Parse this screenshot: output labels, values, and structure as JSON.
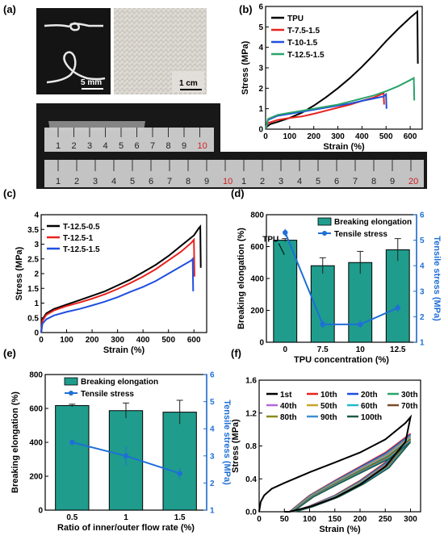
{
  "panel_labels": [
    "(a)",
    "(b)",
    "(c)",
    "(d)",
    "(e)",
    "(f)"
  ],
  "photo_a": {
    "scale_bar_1": "5 mm",
    "scale_bar_2": "1 cm",
    "ruler1_ticks": [
      "1",
      "2",
      "3",
      "4",
      "5",
      "6",
      "7",
      "8",
      "9",
      "10"
    ],
    "ruler2_ticks": [
      "1",
      "2",
      "3",
      "4",
      "5",
      "6",
      "7",
      "8",
      "9",
      "10",
      "1",
      "2",
      "3",
      "4",
      "5",
      "6",
      "7",
      "8",
      "9",
      "20"
    ],
    "colors": {
      "photo_bg": "#141414",
      "mesh": "#d8d6d2",
      "ruler": "#c9c9c9",
      "red_numeral": "#d21f1f"
    }
  },
  "chart_data": [
    {
      "id": "b",
      "type": "line",
      "xlabel": "Strain (%)",
      "ylabel": "Stress (MPa)",
      "xlim": [
        0,
        650
      ],
      "ylim": [
        0,
        6
      ],
      "xticks": [
        0,
        100,
        200,
        300,
        400,
        500,
        600
      ],
      "yticks": [
        0,
        1,
        2,
        3,
        4,
        5,
        6
      ],
      "legend_position": "top-left",
      "series": [
        {
          "name": "TPU",
          "color": "#000000",
          "x": [
            0,
            5,
            20,
            50,
            100,
            150,
            200,
            250,
            300,
            350,
            400,
            450,
            500,
            550,
            600,
            625,
            630,
            632
          ],
          "y": [
            0,
            0.12,
            0.25,
            0.35,
            0.55,
            0.8,
            1.15,
            1.55,
            2.0,
            2.5,
            3.05,
            3.65,
            4.3,
            4.9,
            5.45,
            5.7,
            5.75,
            3.2
          ]
        },
        {
          "name": "T-7.5-1.5",
          "color": "#e8231f",
          "x": [
            0,
            10,
            50,
            100,
            150,
            200,
            250,
            300,
            350,
            400,
            450,
            480,
            490,
            492
          ],
          "y": [
            0,
            0.3,
            0.45,
            0.55,
            0.62,
            0.75,
            0.9,
            1.05,
            1.2,
            1.38,
            1.55,
            1.7,
            1.78,
            1.2
          ]
        },
        {
          "name": "T-10-1.5",
          "color": "#1f4fe0",
          "x": [
            0,
            10,
            50,
            100,
            150,
            200,
            250,
            300,
            350,
            400,
            450,
            490,
            500,
            502
          ],
          "y": [
            0,
            0.45,
            0.65,
            0.75,
            0.85,
            0.95,
            1.05,
            1.15,
            1.25,
            1.38,
            1.5,
            1.6,
            1.7,
            1.0
          ]
        },
        {
          "name": "T-12.5-1.5",
          "color": "#2aa36b",
          "x": [
            0,
            10,
            50,
            100,
            150,
            200,
            250,
            300,
            350,
            400,
            450,
            500,
            550,
            600,
            615,
            617
          ],
          "y": [
            0,
            0.5,
            0.7,
            0.8,
            0.9,
            1.0,
            1.1,
            1.2,
            1.35,
            1.5,
            1.65,
            1.85,
            2.1,
            2.4,
            2.5,
            1.4
          ]
        }
      ]
    },
    {
      "id": "c",
      "type": "line",
      "xlabel": "Strain (%)",
      "ylabel": "Stress (MPa)",
      "xlim": [
        0,
        650
      ],
      "ylim": [
        0,
        4
      ],
      "xticks": [
        0,
        100,
        200,
        300,
        400,
        500,
        600
      ],
      "yticks": [
        0,
        0.5,
        1,
        1.5,
        2,
        2.5,
        3,
        3.5,
        4
      ],
      "legend_position": "top-left",
      "series": [
        {
          "name": "T-12.5-0.5",
          "color": "#000000",
          "x": [
            0,
            5,
            20,
            50,
            100,
            150,
            200,
            250,
            300,
            350,
            400,
            450,
            500,
            550,
            600,
            620,
            625,
            627
          ],
          "y": [
            0,
            0.45,
            0.65,
            0.8,
            0.95,
            1.1,
            1.25,
            1.4,
            1.6,
            1.8,
            2.05,
            2.3,
            2.6,
            2.95,
            3.3,
            3.55,
            3.6,
            2.2
          ]
        },
        {
          "name": "T-12.5-1",
          "color": "#e8231f",
          "x": [
            0,
            5,
            20,
            50,
            100,
            150,
            200,
            250,
            300,
            350,
            400,
            450,
            500,
            550,
            590,
            600,
            602
          ],
          "y": [
            0,
            0.4,
            0.6,
            0.75,
            0.9,
            1.02,
            1.15,
            1.3,
            1.48,
            1.68,
            1.9,
            2.15,
            2.45,
            2.75,
            3.05,
            3.15,
            1.9
          ]
        },
        {
          "name": "T-12.5-1.5",
          "color": "#1f4fe0",
          "x": [
            0,
            5,
            20,
            50,
            100,
            150,
            200,
            250,
            300,
            350,
            400,
            450,
            500,
            550,
            590,
            595,
            597
          ],
          "y": [
            0,
            0.3,
            0.45,
            0.58,
            0.7,
            0.8,
            0.92,
            1.05,
            1.2,
            1.38,
            1.55,
            1.75,
            2.0,
            2.25,
            2.45,
            2.5,
            1.4
          ]
        }
      ]
    },
    {
      "id": "d",
      "type": "bar",
      "xlabel": "TPU concentration (%)",
      "ylabel": "Breaking elongation (%)",
      "ylabel_right": "Tensile stress (MPa)",
      "categories": [
        "0",
        "7.5",
        "10",
        "12.5"
      ],
      "ylim": [
        0,
        800
      ],
      "yticks": [
        0,
        200,
        400,
        600,
        800
      ],
      "ylim_right": [
        1,
        6
      ],
      "yticks_right": [
        1,
        2,
        3,
        4,
        5,
        6
      ],
      "legend_position": "top-right",
      "annotation": "TPU",
      "series": [
        {
          "name": "Breaking elongation",
          "color": "#1f9c8c",
          "values": [
            640,
            480,
            500,
            580
          ],
          "errors": [
            10,
            50,
            70,
            70
          ]
        },
        {
          "name": "Tensile stress",
          "color": "#1f6fd6",
          "axis": "right",
          "values": [
            5.3,
            1.7,
            1.7,
            2.35
          ],
          "errors": [
            0.15,
            0.15,
            0.15,
            0.15
          ]
        }
      ]
    },
    {
      "id": "e",
      "type": "bar",
      "xlabel": "Ratio of inner/outer flow rate (%)",
      "ylabel": "Breaking elongation (%)",
      "ylabel_right": "Tensile stress (MPa)",
      "categories": [
        "0.5",
        "1",
        "1.5"
      ],
      "ylim": [
        0,
        800
      ],
      "yticks": [
        0,
        200,
        400,
        600,
        800
      ],
      "ylim_right": [
        1,
        6
      ],
      "yticks_right": [
        1,
        2,
        3,
        4,
        5,
        6
      ],
      "legend_position": "top-right",
      "series": [
        {
          "name": "Breaking elongation",
          "color": "#1f9c8c",
          "values": [
            617,
            587,
            578
          ],
          "errors": [
            8,
            45,
            70
          ]
        },
        {
          "name": "Tensile stress",
          "color": "#1f6fd6",
          "axis": "right",
          "values": [
            3.5,
            3.0,
            2.35
          ],
          "errors": [
            0.1,
            0.35,
            0.2
          ]
        }
      ]
    },
    {
      "id": "f",
      "type": "line",
      "xlabel": "Strain (%)",
      "ylabel": "Stress (MPa)",
      "xlim": [
        0,
        320
      ],
      "ylim": [
        0,
        1.6
      ],
      "xticks": [
        0,
        50,
        100,
        150,
        200,
        250,
        300
      ],
      "yticks": [
        0.0,
        0.4,
        0.8,
        1.2,
        1.6
      ],
      "ytick_labels": [
        "0.0",
        "0.4",
        "0.8",
        "1.2",
        "1.6"
      ],
      "legend_position": "top",
      "series": [
        {
          "name": "1st",
          "color": "#000000"
        },
        {
          "name": "10th",
          "color": "#e8231f"
        },
        {
          "name": "20th",
          "color": "#1f4fe0"
        },
        {
          "name": "30th",
          "color": "#2aa36b"
        },
        {
          "name": "40th",
          "color": "#b565d9"
        },
        {
          "name": "50th",
          "color": "#c9a227"
        },
        {
          "name": "60th",
          "color": "#22b8c9"
        },
        {
          "name": "70th",
          "color": "#7a4a2a"
        },
        {
          "name": "80th",
          "color": "#8a8a1f"
        },
        {
          "name": "90th",
          "color": "#3f8fd0"
        },
        {
          "name": "100th",
          "color": "#1d5a4a"
        }
      ],
      "first_cycle": {
        "loading_x": [
          0,
          3,
          10,
          25,
          50,
          100,
          150,
          200,
          250,
          290,
          300
        ],
        "loading_y": [
          0,
          0.12,
          0.2,
          0.28,
          0.35,
          0.48,
          0.6,
          0.72,
          0.88,
          1.08,
          1.15
        ],
        "unloading_x": [
          300,
          290,
          250,
          200,
          150,
          100,
          60,
          50
        ],
        "unloading_y": [
          1.15,
          0.85,
          0.55,
          0.33,
          0.17,
          0.06,
          0.0,
          0.0
        ]
      },
      "later_cycles": {
        "loading_x": [
          60,
          100,
          150,
          200,
          250,
          300
        ],
        "loading_y": [
          0.0,
          0.2,
          0.38,
          0.55,
          0.72,
          0.95
        ],
        "unloading_x": [
          300,
          250,
          200,
          150,
          100,
          65
        ],
        "unloading_y": [
          0.95,
          0.6,
          0.38,
          0.2,
          0.07,
          0.0
        ]
      }
    }
  ]
}
